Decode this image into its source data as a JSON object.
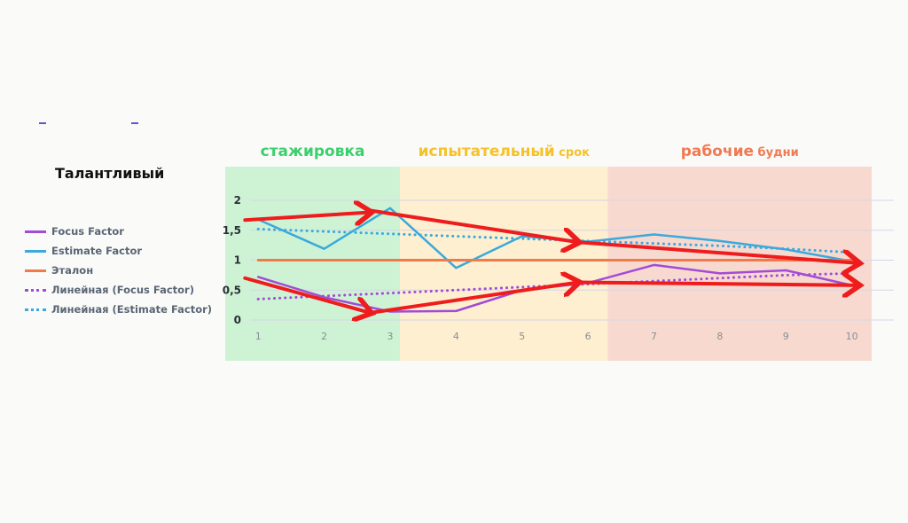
{
  "title": "Талантливый",
  "phases": [
    {
      "main": "стажировка",
      "sub": "",
      "color": "#3ccf6e",
      "bg": "#cdf3d4",
      "from": 0.5,
      "to": 3.15
    },
    {
      "main": "испытательный",
      "sub": "срок",
      "color": "#f5c22a",
      "bg": "#fdefcf",
      "from": 3.15,
      "to": 6.3
    },
    {
      "main": "рабочие",
      "sub": "будни",
      "color": "#f07a52",
      "bg": "#f8d9cf",
      "from": 6.3,
      "to": 10.3
    }
  ],
  "legend": [
    {
      "label": "Focus Factor",
      "color": "#a24bd6",
      "style": "solid"
    },
    {
      "label": "Estimate Factor",
      "color": "#3aa9dc",
      "style": "solid"
    },
    {
      "label": "Эталон",
      "color": "#f07a4a",
      "style": "solid"
    },
    {
      "label": "Линейная (Focus Factor)",
      "color": "#a24bd6",
      "style": "dotted"
    },
    {
      "label": "Линейная (Estimate Factor)",
      "color": "#3aa9dc",
      "style": "dotted"
    }
  ],
  "chart_data": {
    "type": "line",
    "x": [
      1,
      2,
      3,
      4,
      5,
      6,
      7,
      8,
      9,
      10
    ],
    "xlim": [
      0.5,
      10.3
    ],
    "ylim": [
      0,
      2
    ],
    "y_ticks": [
      "0",
      "0,5",
      "1",
      "1,5",
      "2"
    ],
    "x_ticks": [
      "1",
      "2",
      "3",
      "4",
      "5",
      "6",
      "7",
      "8",
      "9",
      "10"
    ],
    "grid": true,
    "series": [
      {
        "name": "Focus Factor",
        "color": "#a24bd6",
        "style": "solid",
        "values": [
          0.72,
          0.38,
          0.14,
          0.15,
          0.5,
          0.62,
          0.92,
          0.78,
          0.83,
          0.58
        ]
      },
      {
        "name": "Estimate Factor",
        "color": "#3aa9dc",
        "style": "solid",
        "values": [
          1.68,
          1.19,
          1.87,
          0.87,
          1.4,
          1.31,
          1.43,
          1.32,
          1.18,
          0.98
        ]
      },
      {
        "name": "Эталон",
        "color": "#f07a4a",
        "style": "solid",
        "values": [
          1,
          1,
          1,
          1,
          1,
          1,
          1,
          1,
          1,
          1
        ]
      },
      {
        "name": "Линейная (Focus Factor)",
        "color": "#a24bd6",
        "style": "dotted",
        "values": [
          0.35,
          0.4,
          0.45,
          0.5,
          0.55,
          0.6,
          0.65,
          0.7,
          0.75,
          0.78
        ]
      },
      {
        "name": "Линейная (Estimate Factor)",
        "color": "#3aa9dc",
        "style": "dotted",
        "values": [
          1.52,
          1.48,
          1.44,
          1.4,
          1.36,
          1.32,
          1.28,
          1.24,
          1.19,
          1.13
        ]
      }
    ],
    "arrows": [
      {
        "from": [
          0.8,
          1.67
        ],
        "to": [
          2.7,
          1.8
        ]
      },
      {
        "from": [
          2.7,
          1.83
        ],
        "to": [
          5.85,
          1.3
        ]
      },
      {
        "from": [
          5.85,
          1.3
        ],
        "to": [
          10.1,
          0.95
        ]
      },
      {
        "from": [
          0.8,
          0.7
        ],
        "to": [
          2.7,
          0.12
        ]
      },
      {
        "from": [
          2.7,
          0.12
        ],
        "to": [
          5.85,
          0.63
        ]
      },
      {
        "from": [
          5.85,
          0.63
        ],
        "to": [
          10.1,
          0.58
        ]
      }
    ],
    "arrow_color": "#ee1c1c"
  }
}
